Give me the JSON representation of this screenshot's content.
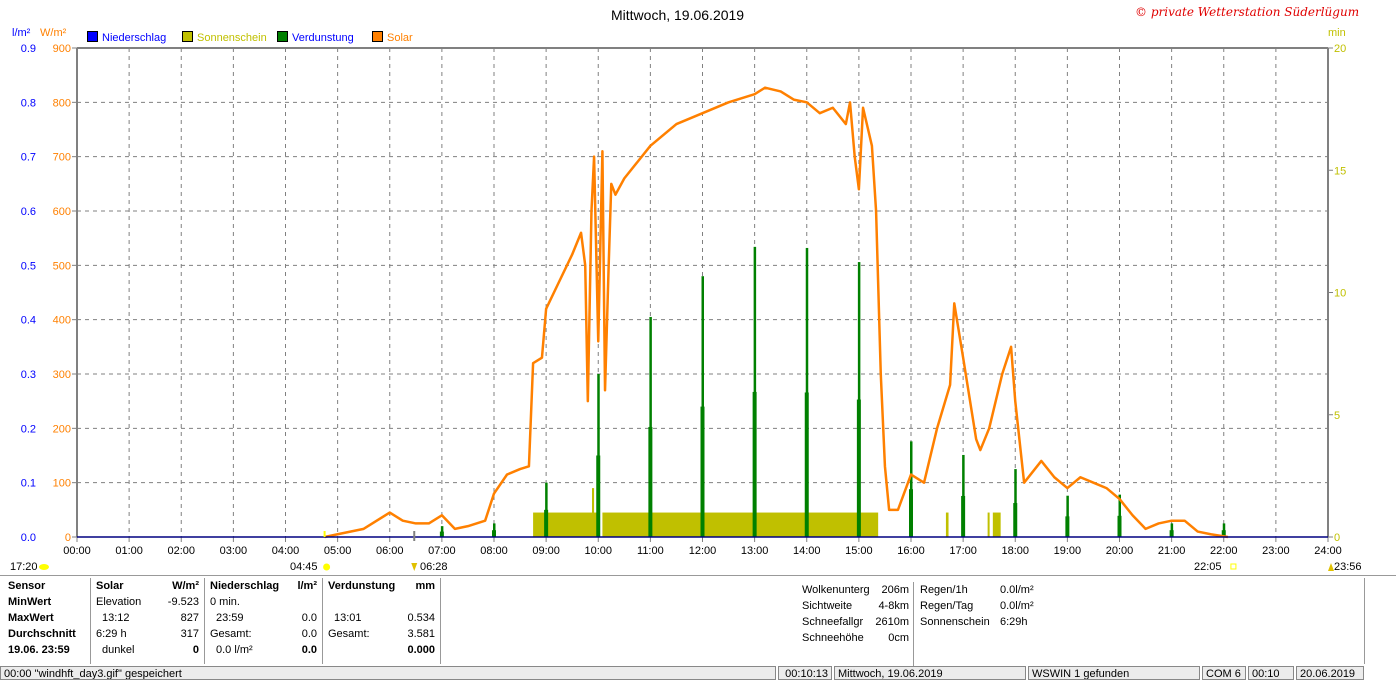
{
  "title": "Mittwoch, 19.06.2019",
  "copyright": "© private Wetterstation Süderlügum",
  "axis_units": {
    "left_blue": "l/m²",
    "left_orange": "W/m²",
    "right": "min"
  },
  "legend": [
    {
      "label": "Niederschlag",
      "color": "#0000ff",
      "text_color": "#0000ff"
    },
    {
      "label": "Sonnenschein",
      "color": "#c0c000",
      "text_color": "#c0c000"
    },
    {
      "label": "Verdunstung",
      "color": "#008000",
      "text_color": "#0000ff"
    },
    {
      "label": "Solar",
      "color": "#ff8000",
      "text_color": "#ff8000"
    }
  ],
  "markers": {
    "moonset": "17:20",
    "sunrise": "04:45",
    "civil_dawn": "06:28",
    "sunset": "22:05",
    "moonrise": "23:56"
  },
  "chart_data": {
    "type": "line",
    "title": "Mittwoch, 19.06.2019",
    "x_ticks": [
      "00:00",
      "01:00",
      "02:00",
      "03:00",
      "04:00",
      "05:00",
      "06:00",
      "07:00",
      "08:00",
      "09:00",
      "10:00",
      "11:00",
      "12:00",
      "13:00",
      "14:00",
      "15:00",
      "16:00",
      "17:00",
      "18:00",
      "19:00",
      "20:00",
      "21:00",
      "22:00",
      "23:00",
      "24:00"
    ],
    "xlim": [
      0,
      24
    ],
    "y_left_solar": {
      "unit": "W/m²",
      "lim": [
        0,
        900
      ],
      "ticks": [
        0,
        100,
        200,
        300,
        400,
        500,
        600,
        700,
        800,
        900
      ]
    },
    "y_left_rain": {
      "unit": "l/m²",
      "lim": [
        0,
        0.9
      ],
      "ticks": [
        "0.0",
        "0.1",
        "0.2",
        "0.3",
        "0.4",
        "0.5",
        "0.6",
        "0.7",
        "0.8",
        "0.9"
      ]
    },
    "y_right": {
      "unit": "min",
      "lim": [
        0,
        20
      ],
      "ticks": [
        0,
        5,
        10,
        15,
        20
      ]
    },
    "grid": true,
    "legend_placement": "top-left",
    "series": [
      {
        "name": "Solar",
        "color": "#ff8000",
        "axis": "W/m²",
        "points": [
          [
            4.75,
            0
          ],
          [
            5,
            5
          ],
          [
            5.5,
            15
          ],
          [
            6,
            45
          ],
          [
            6.25,
            30
          ],
          [
            6.5,
            25
          ],
          [
            6.75,
            25
          ],
          [
            7,
            40
          ],
          [
            7.25,
            15
          ],
          [
            7.5,
            20
          ],
          [
            7.83,
            30
          ],
          [
            8,
            80
          ],
          [
            8.25,
            115
          ],
          [
            8.5,
            125
          ],
          [
            8.67,
            130
          ],
          [
            8.75,
            320
          ],
          [
            8.92,
            330
          ],
          [
            9,
            420
          ],
          [
            9.25,
            470
          ],
          [
            9.5,
            520
          ],
          [
            9.67,
            560
          ],
          [
            9.75,
            500
          ],
          [
            9.8,
            250
          ],
          [
            9.87,
            600
          ],
          [
            9.92,
            700
          ],
          [
            10,
            360
          ],
          [
            10.08,
            710
          ],
          [
            10.13,
            270
          ],
          [
            10.2,
            500
          ],
          [
            10.25,
            650
          ],
          [
            10.33,
            630
          ],
          [
            10.5,
            660
          ],
          [
            10.75,
            690
          ],
          [
            11,
            720
          ],
          [
            11.5,
            760
          ],
          [
            12,
            780
          ],
          [
            12.5,
            800
          ],
          [
            13,
            815
          ],
          [
            13.2,
            827
          ],
          [
            13.5,
            820
          ],
          [
            13.75,
            805
          ],
          [
            14,
            800
          ],
          [
            14.25,
            780
          ],
          [
            14.5,
            790
          ],
          [
            14.75,
            760
          ],
          [
            14.83,
            800
          ],
          [
            14.92,
            700
          ],
          [
            15,
            640
          ],
          [
            15.08,
            790
          ],
          [
            15.25,
            720
          ],
          [
            15.33,
            600
          ],
          [
            15.42,
            300
          ],
          [
            15.5,
            130
          ],
          [
            15.58,
            50
          ],
          [
            15.75,
            50
          ],
          [
            16,
            115
          ],
          [
            16.25,
            100
          ],
          [
            16.5,
            200
          ],
          [
            16.75,
            280
          ],
          [
            16.83,
            430
          ],
          [
            17,
            330
          ],
          [
            17.25,
            180
          ],
          [
            17.33,
            160
          ],
          [
            17.5,
            200
          ],
          [
            17.75,
            300
          ],
          [
            17.92,
            350
          ],
          [
            18,
            250
          ],
          [
            18.17,
            100
          ],
          [
            18.5,
            140
          ],
          [
            18.75,
            110
          ],
          [
            19,
            90
          ],
          [
            19.25,
            110
          ],
          [
            19.5,
            100
          ],
          [
            19.75,
            90
          ],
          [
            20,
            70
          ],
          [
            20.25,
            40
          ],
          [
            20.5,
            15
          ],
          [
            20.75,
            25
          ],
          [
            21,
            30
          ],
          [
            21.25,
            30
          ],
          [
            21.5,
            10
          ],
          [
            21.75,
            5
          ],
          [
            22.08,
            0
          ]
        ]
      },
      {
        "name": "Verdunstung",
        "color": "#008000",
        "axis": "l/m²",
        "type": "bar",
        "points": [
          [
            7,
            0.02
          ],
          [
            8,
            0.025
          ],
          [
            9,
            0.1
          ],
          [
            10,
            0.3
          ],
          [
            11,
            0.405
          ],
          [
            12,
            0.48
          ],
          [
            13,
            0.534
          ],
          [
            14,
            0.532
          ],
          [
            15,
            0.506
          ],
          [
            16,
            0.176
          ],
          [
            17,
            0.151
          ],
          [
            18,
            0.125
          ],
          [
            19,
            0.076
          ],
          [
            20,
            0.078
          ],
          [
            21,
            0.025
          ],
          [
            22,
            0.025
          ]
        ]
      },
      {
        "name": "Sonnenschein",
        "color": "#c0c000",
        "axis": "min",
        "type": "bar",
        "ranges": [
          [
            8.75,
            9.97,
            1
          ],
          [
            9.88,
            9.92,
            2
          ],
          [
            10.08,
            15.37,
            1
          ],
          [
            16.67,
            16.72,
            1
          ],
          [
            17.47,
            17.5,
            1
          ],
          [
            17.57,
            17.72,
            1
          ]
        ]
      },
      {
        "name": "Niederschlag",
        "color": "#0000ff",
        "axis": "l/m²",
        "type": "bar",
        "points": []
      }
    ]
  },
  "table": {
    "sensor": {
      "head": "Sensor",
      "rows": [
        "MinWert",
        "MaxWert",
        "Durchschnitt",
        "19.06. 23:59"
      ]
    },
    "solar": {
      "head": "Solar",
      "unit": "W/m²",
      "rows": [
        [
          "Elevation",
          "-9.523"
        ],
        [
          "13:12",
          "827"
        ],
        [
          "6:29 h",
          "317"
        ],
        [
          "dunkel",
          "0"
        ]
      ]
    },
    "rain": {
      "head": "Niederschlag",
      "unit": "l/m²",
      "rows": [
        [
          "0 min.",
          ""
        ],
        [
          "23:59",
          "0.0"
        ],
        [
          "Gesamt:",
          "0.0"
        ],
        [
          "0.0 l/m²",
          "0.0"
        ]
      ]
    },
    "evap": {
      "head": "Verdunstung",
      "unit": "mm",
      "rows": [
        [
          "",
          ""
        ],
        [
          "13:01",
          "0.534"
        ],
        [
          "Gesamt:",
          "3.581"
        ],
        [
          "",
          "0.000"
        ]
      ]
    },
    "extra": [
      [
        "Wolkenunterg",
        "206m"
      ],
      [
        "Sichtweite",
        "4-8km"
      ],
      [
        "Schneefallgr",
        "2610m"
      ],
      [
        "Schneehöhe",
        "0cm"
      ]
    ],
    "extra2": [
      [
        "Regen/1h",
        "0.0l/m²"
      ],
      [
        "Regen/Tag",
        "0.0l/m²"
      ],
      [
        "Sonnenschein",
        "6:29h"
      ]
    ]
  },
  "statusbar": [
    "00:00 \"windhft_day3.gif\" gespeichert",
    "00:10:13",
    "Mittwoch, 19.06.2019",
    "WSWIN 1 gefunden",
    "COM 6",
    "00:10",
    "20.06.2019"
  ]
}
